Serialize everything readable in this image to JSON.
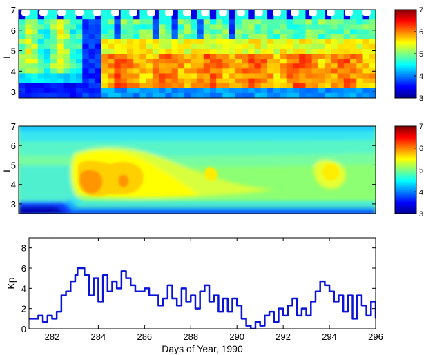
{
  "chart_data": [
    {
      "type": "heatmap",
      "panel": "observed",
      "ylabel": "L",
      "xlim": [
        281,
        296
      ],
      "ylim": [
        2.7,
        7
      ],
      "yticks": [
        3,
        4,
        5,
        6,
        7
      ],
      "colorbar": {
        "min": 3,
        "max": 7,
        "ticks": [
          "3",
          "4",
          "5",
          "6",
          "7"
        ],
        "colormap": "jet"
      },
      "grid": false
    },
    {
      "type": "heatmap",
      "panel": "model",
      "ylabel": "L",
      "xlim": [
        281,
        296
      ],
      "ylim": [
        2.5,
        7
      ],
      "yticks": [
        3,
        4,
        5,
        6,
        7
      ],
      "colorbar": {
        "min": 3,
        "max": 7,
        "ticks": [
          "3",
          "4",
          "5",
          "6",
          "7"
        ],
        "colormap": "jet"
      },
      "grid": false
    },
    {
      "type": "line",
      "xlabel": "Days of Year, 1990",
      "ylabel": "Kp",
      "xlim": [
        281,
        296
      ],
      "ylim": [
        0,
        9
      ],
      "xticks": [
        282,
        284,
        286,
        288,
        290,
        292,
        294,
        296
      ],
      "yticks": [
        0,
        2,
        4,
        6,
        8
      ],
      "line_color": "#0a14d8",
      "grid": false,
      "series": [
        {
          "x": [
            281.0,
            281.2,
            281.4,
            281.6,
            281.8,
            282.0,
            282.2,
            282.4,
            282.6,
            282.8,
            283.0,
            283.1,
            283.2,
            283.4,
            283.6,
            283.8,
            284.0,
            284.2,
            284.4,
            284.6,
            284.8,
            285.0,
            285.2,
            285.4,
            285.6,
            285.8,
            286.0,
            286.2,
            286.4,
            286.6,
            286.8,
            287.0,
            287.2,
            287.4,
            287.6,
            287.8,
            288.0,
            288.2,
            288.4,
            288.6,
            288.8,
            289.0,
            289.2,
            289.4,
            289.6,
            289.8,
            290.0,
            290.2,
            290.4,
            290.6,
            290.8,
            291.0,
            291.2,
            291.4,
            291.6,
            291.8,
            292.0,
            292.2,
            292.4,
            292.6,
            292.8,
            293.0,
            293.2,
            293.4,
            293.6,
            293.8,
            294.0,
            294.2,
            294.4,
            294.6,
            294.8,
            295.0,
            295.2,
            295.4,
            295.6,
            295.8,
            296.0
          ],
          "values": [
            1.0,
            1.0,
            1.3,
            0.7,
            1.3,
            1.0,
            1.7,
            3.3,
            3.7,
            4.7,
            5.3,
            6.0,
            6.0,
            5.3,
            3.3,
            5.0,
            2.7,
            5.3,
            3.7,
            4.7,
            4.0,
            5.7,
            5.0,
            4.3,
            3.7,
            3.7,
            4.0,
            3.3,
            3.3,
            2.3,
            3.0,
            4.3,
            3.0,
            2.3,
            4.0,
            2.7,
            3.3,
            2.0,
            3.7,
            4.3,
            2.7,
            3.3,
            1.7,
            3.0,
            1.7,
            3.0,
            2.3,
            1.0,
            0.3,
            0.0,
            0.7,
            0.3,
            1.3,
            1.7,
            0.7,
            2.0,
            1.3,
            2.3,
            3.0,
            1.3,
            2.0,
            1.3,
            2.7,
            3.7,
            4.7,
            4.3,
            3.7,
            2.7,
            3.3,
            1.7,
            3.3,
            1.0,
            3.3,
            2.3,
            1.3,
            2.7,
            1.0
          ]
        }
      ]
    }
  ]
}
